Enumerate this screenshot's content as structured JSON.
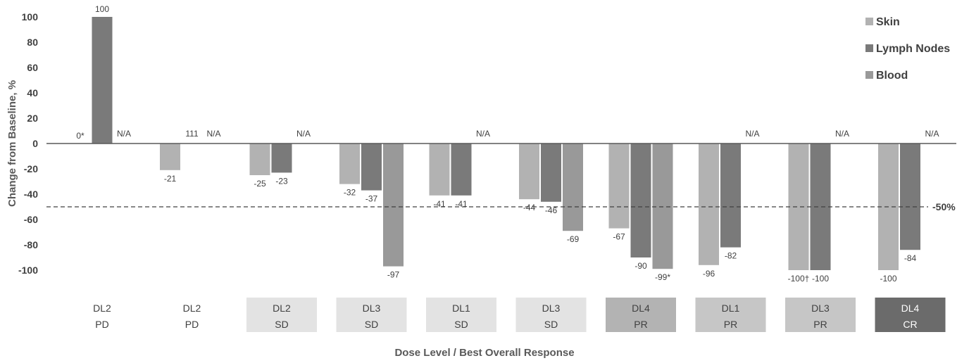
{
  "chart_data": {
    "type": "bar",
    "ylabel": "Change from Baseline, %",
    "xlabel": "Dose Level / Best Overall Response",
    "ylim": [
      -100,
      100
    ],
    "yticks": [
      100,
      80,
      60,
      40,
      20,
      0,
      -20,
      -40,
      -60,
      -80,
      -100
    ],
    "threshold": {
      "value": -50,
      "label": "-50%"
    },
    "legend_position": "top-right",
    "series": [
      {
        "name": "Skin",
        "color": "#b2b2b2",
        "values": [
          0,
          -21,
          -25,
          -32,
          -41,
          -44,
          -67,
          -96,
          -100,
          -100
        ],
        "labels": [
          "0*",
          "-21",
          "-25",
          "-32",
          "-41",
          "-44",
          "-67",
          "-96",
          "-100†",
          "-100"
        ]
      },
      {
        "name": "Lymph Nodes",
        "color": "#7a7a7a",
        "values": [
          100,
          null,
          -23,
          -37,
          -41,
          -46,
          -90,
          -82,
          -100,
          -84
        ],
        "labels": [
          "100",
          "111",
          "-23",
          "-37",
          "-41",
          "-46",
          "-90",
          "-82",
          "-100",
          "-84"
        ]
      },
      {
        "name": "Blood",
        "color": "#999999",
        "values": [
          null,
          null,
          null,
          -97,
          null,
          -69,
          -99,
          null,
          null,
          null
        ],
        "labels": [
          "N/A",
          "N/A",
          "N/A",
          "-97",
          "N/A",
          "-69",
          "-99*",
          "N/A",
          "N/A",
          "N/A"
        ]
      }
    ],
    "groups": [
      {
        "dose": "DL2",
        "response": "PD",
        "fill": "#ffffff",
        "text": "#404040"
      },
      {
        "dose": "DL2",
        "response": "PD",
        "fill": "#ffffff",
        "text": "#404040"
      },
      {
        "dose": "DL2",
        "response": "SD",
        "fill": "#e3e3e3",
        "text": "#404040"
      },
      {
        "dose": "DL3",
        "response": "SD",
        "fill": "#e3e3e3",
        "text": "#404040"
      },
      {
        "dose": "DL1",
        "response": "SD",
        "fill": "#e3e3e3",
        "text": "#404040"
      },
      {
        "dose": "DL3",
        "response": "SD",
        "fill": "#e3e3e3",
        "text": "#404040"
      },
      {
        "dose": "DL4",
        "response": "PR",
        "fill": "#b3b3b3",
        "text": "#404040"
      },
      {
        "dose": "DL1",
        "response": "PR",
        "fill": "#c6c6c6",
        "text": "#404040"
      },
      {
        "dose": "DL3",
        "response": "PR",
        "fill": "#c6c6c6",
        "text": "#404040"
      },
      {
        "dose": "DL4",
        "response": "CR",
        "fill": "#6b6b6b",
        "text": "#ffffff"
      }
    ],
    "colors": {
      "axis": "#595959",
      "text": "#404040"
    }
  }
}
